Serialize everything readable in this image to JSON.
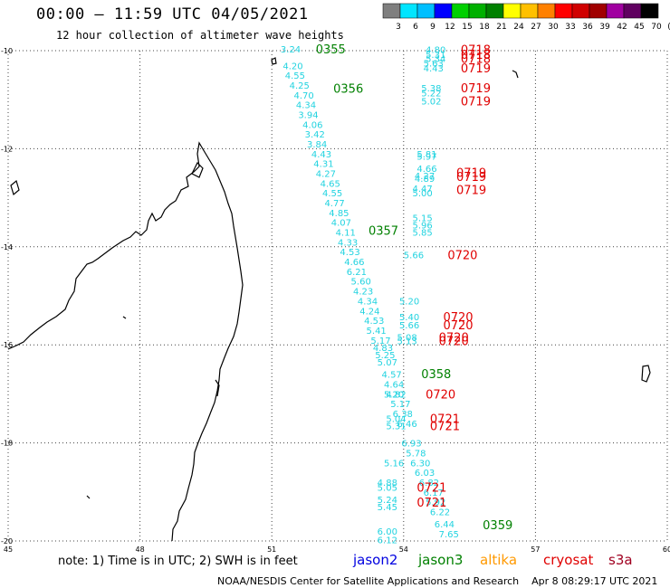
{
  "header": {
    "title": "00:00 – 11:59 UTC 04/05/2021",
    "subtitle": "12 hour collection of altimeter wave heights"
  },
  "colorbar": {
    "labels": [
      "3",
      "6",
      "9",
      "12",
      "15",
      "18",
      "21",
      "24",
      "27",
      "30",
      "33",
      "36",
      "39",
      "42",
      "45",
      "70",
      "(ft)"
    ],
    "colors": [
      "#7f7f7f",
      "#00e5ff",
      "#00bfff",
      "#0000ff",
      "#00d000",
      "#00b000",
      "#008000",
      "#ffff00",
      "#ffc000",
      "#ff8000",
      "#ff0000",
      "#d00000",
      "#a00000",
      "#a000a0",
      "#600060",
      "#000000"
    ]
  },
  "axes": {
    "lon_ticks": [
      "45",
      "48",
      "51",
      "54",
      "57",
      "60"
    ],
    "lat_ticks": [
      "-10",
      "-12",
      "-14",
      "-16",
      "-18",
      "-20"
    ],
    "lon_range": [
      45,
      60
    ],
    "lat_range": [
      -20,
      -10
    ]
  },
  "passes": [
    {
      "time": "0355",
      "satellite": "jason3",
      "lon": 52.0,
      "lat": -9.96
    },
    {
      "time": "0356",
      "satellite": "jason3",
      "lon": 52.4,
      "lat": -10.77
    },
    {
      "time": "0357",
      "satellite": "jason3",
      "lon": 53.2,
      "lat": -13.66
    },
    {
      "time": "0358",
      "satellite": "jason3",
      "lon": 54.4,
      "lat": -16.59
    },
    {
      "time": "0359",
      "satellite": "jason3",
      "lon": 55.8,
      "lat": -19.67
    },
    {
      "time": "0718",
      "satellite": "cryosat",
      "lon": 55.3,
      "lat": -9.97
    },
    {
      "time": "0718",
      "satellite": "cryosat",
      "lon": 55.3,
      "lat": -10.07
    },
    {
      "time": "0718",
      "satellite": "cryosat",
      "lon": 55.3,
      "lat": -10.16
    },
    {
      "time": "0719",
      "satellite": "cryosat",
      "lon": 55.3,
      "lat": -10.35
    },
    {
      "time": "0719",
      "satellite": "cryosat",
      "lon": 55.3,
      "lat": -10.76
    },
    {
      "time": "0719",
      "satellite": "cryosat",
      "lon": 55.3,
      "lat": -11.02
    },
    {
      "time": "0719",
      "satellite": "cryosat",
      "lon": 55.2,
      "lat": -12.48
    },
    {
      "time": "0719",
      "satellite": "cryosat",
      "lon": 55.2,
      "lat": -12.56
    },
    {
      "time": "0719",
      "satellite": "cryosat",
      "lon": 55.2,
      "lat": -12.83
    },
    {
      "time": "0720",
      "satellite": "cryosat",
      "lon": 55.0,
      "lat": -14.16
    },
    {
      "time": "0720",
      "satellite": "cryosat",
      "lon": 54.9,
      "lat": -15.42
    },
    {
      "time": "0720",
      "satellite": "cryosat",
      "lon": 54.9,
      "lat": -15.59
    },
    {
      "time": "0720",
      "satellite": "cryosat",
      "lon": 54.8,
      "lat": -15.84
    },
    {
      "time": "0720",
      "satellite": "cryosat",
      "lon": 54.8,
      "lat": -15.91
    },
    {
      "time": "0720",
      "satellite": "cryosat",
      "lon": 54.5,
      "lat": -17.0
    },
    {
      "time": "0721",
      "satellite": "cryosat",
      "lon": 54.6,
      "lat": -17.5
    },
    {
      "time": "0721",
      "satellite": "cryosat",
      "lon": 54.6,
      "lat": -17.65
    },
    {
      "time": "0721",
      "satellite": "cryosat",
      "lon": 54.3,
      "lat": -18.9
    },
    {
      "time": "0721",
      "satellite": "cryosat",
      "lon": 54.3,
      "lat": -19.21
    }
  ],
  "swh_track_jason3": [
    {
      "v": "3.24",
      "lon": 51.2,
      "lat": -9.96
    },
    {
      "v": "4.20",
      "lon": 51.25,
      "lat": -10.3
    },
    {
      "v": "4.55",
      "lon": 51.3,
      "lat": -10.5
    },
    {
      "v": "4.25",
      "lon": 51.4,
      "lat": -10.7
    },
    {
      "v": "4.70",
      "lon": 51.5,
      "lat": -10.9
    },
    {
      "v": "4.34",
      "lon": 51.55,
      "lat": -11.1
    },
    {
      "v": "3.94",
      "lon": 51.6,
      "lat": -11.3
    },
    {
      "v": "4.06",
      "lon": 51.7,
      "lat": -11.5
    },
    {
      "v": "3.42",
      "lon": 51.75,
      "lat": -11.7
    },
    {
      "v": "3.84",
      "lon": 51.8,
      "lat": -11.9
    },
    {
      "v": "4.43",
      "lon": 51.9,
      "lat": -12.1
    },
    {
      "v": "4.31",
      "lon": 51.95,
      "lat": -12.3
    },
    {
      "v": "4.27",
      "lon": 52.0,
      "lat": -12.5
    },
    {
      "v": "4.65",
      "lon": 52.1,
      "lat": -12.7
    },
    {
      "v": "4.55",
      "lon": 52.15,
      "lat": -12.9
    },
    {
      "v": "4.77",
      "lon": 52.2,
      "lat": -13.1
    },
    {
      "v": "4.85",
      "lon": 52.3,
      "lat": -13.3
    },
    {
      "v": "4.07",
      "lon": 52.35,
      "lat": -13.5
    },
    {
      "v": "4.11",
      "lon": 52.45,
      "lat": -13.7
    },
    {
      "v": "4.33",
      "lon": 52.5,
      "lat": -13.9
    },
    {
      "v": "4.53",
      "lon": 52.55,
      "lat": -14.1
    },
    {
      "v": "4.66",
      "lon": 52.65,
      "lat": -14.3
    },
    {
      "v": "6.21",
      "lon": 52.7,
      "lat": -14.5
    },
    {
      "v": "5.60",
      "lon": 52.8,
      "lat": -14.7
    },
    {
      "v": "4.23",
      "lon": 52.85,
      "lat": -14.9
    },
    {
      "v": "4.34",
      "lon": 52.95,
      "lat": -15.1
    },
    {
      "v": "4.24",
      "lon": 53.0,
      "lat": -15.3
    },
    {
      "v": "4.53",
      "lon": 53.1,
      "lat": -15.5
    },
    {
      "v": "5.41",
      "lon": 53.15,
      "lat": -15.7
    },
    {
      "v": "5.17",
      "lon": 53.25,
      "lat": -15.9
    },
    {
      "v": "4.83",
      "lon": 53.3,
      "lat": -16.05
    },
    {
      "v": "5.25",
      "lon": 53.35,
      "lat": -16.2
    },
    {
      "v": "5.07",
      "lon": 53.4,
      "lat": -16.35
    },
    {
      "v": "4.57",
      "lon": 53.5,
      "lat": -16.6
    },
    {
      "v": "4.64",
      "lon": 53.55,
      "lat": -16.8
    },
    {
      "v": "4.82",
      "lon": 53.6,
      "lat": -17.0
    },
    {
      "v": "5.17",
      "lon": 53.7,
      "lat": -17.2
    },
    {
      "v": "6.38",
      "lon": 53.75,
      "lat": -17.4
    },
    {
      "v": "6.46",
      "lon": 53.85,
      "lat": -17.6
    },
    {
      "v": "6.93",
      "lon": 53.95,
      "lat": -18.0
    },
    {
      "v": "5.78",
      "lon": 54.05,
      "lat": -18.2
    },
    {
      "v": "6.30",
      "lon": 54.15,
      "lat": -18.4
    },
    {
      "v": "6.03",
      "lon": 54.25,
      "lat": -18.6
    },
    {
      "v": "6.82",
      "lon": 54.35,
      "lat": -18.8
    },
    {
      "v": "6.17",
      "lon": 54.45,
      "lat": -19.0
    },
    {
      "v": "5.92",
      "lon": 54.5,
      "lat": -19.2
    },
    {
      "v": "6.22",
      "lon": 54.6,
      "lat": -19.4
    },
    {
      "v": "6.44",
      "lon": 54.7,
      "lat": -19.65
    },
    {
      "v": "7.65",
      "lon": 54.8,
      "lat": -19.85
    }
  ],
  "swh_track_cryosat": [
    {
      "v": "4.80",
      "lon": 54.5,
      "lat": -9.97
    },
    {
      "v": "5.31",
      "lon": 54.5,
      "lat": -10.07
    },
    {
      "v": "5.34",
      "lon": 54.5,
      "lat": -10.16
    },
    {
      "v": "5.63",
      "lon": 54.45,
      "lat": -10.25
    },
    {
      "v": "4.43",
      "lon": 54.45,
      "lat": -10.35
    },
    {
      "v": "5.38",
      "lon": 54.4,
      "lat": -10.76
    },
    {
      "v": "5.22",
      "lon": 54.4,
      "lat": -10.86
    },
    {
      "v": "5.02",
      "lon": 54.4,
      "lat": -11.02
    },
    {
      "v": "5.81",
      "lon": 54.3,
      "lat": -12.1
    },
    {
      "v": "5.97",
      "lon": 54.3,
      "lat": -12.15
    },
    {
      "v": "4.66",
      "lon": 54.3,
      "lat": -12.4
    },
    {
      "v": "4.27",
      "lon": 54.25,
      "lat": -12.55
    },
    {
      "v": "4.89",
      "lon": 54.25,
      "lat": -12.6
    },
    {
      "v": "4.47",
      "lon": 54.2,
      "lat": -12.8
    },
    {
      "v": "5.00",
      "lon": 54.2,
      "lat": -12.9
    },
    {
      "v": "5.15",
      "lon": 54.2,
      "lat": -13.4
    },
    {
      "v": "5.96",
      "lon": 54.2,
      "lat": -13.55
    },
    {
      "v": "5.85",
      "lon": 54.2,
      "lat": -13.7
    },
    {
      "v": "5.66",
      "lon": 54.0,
      "lat": -14.16
    },
    {
      "v": "5.20",
      "lon": 53.9,
      "lat": -15.1
    },
    {
      "v": "5.40",
      "lon": 53.9,
      "lat": -15.42
    },
    {
      "v": "5.66",
      "lon": 53.9,
      "lat": -15.59
    },
    {
      "v": "5.08",
      "lon": 53.85,
      "lat": -15.84
    },
    {
      "v": "5.13",
      "lon": 53.85,
      "lat": -15.91
    },
    {
      "v": "5.20",
      "lon": 53.55,
      "lat": -17.0
    },
    {
      "v": "5.04",
      "lon": 53.6,
      "lat": -17.5
    },
    {
      "v": "5.31",
      "lon": 53.6,
      "lat": -17.65
    },
    {
      "v": "5.16",
      "lon": 53.55,
      "lat": -18.4
    },
    {
      "v": "4.88",
      "lon": 53.4,
      "lat": -18.8
    },
    {
      "v": "5.05",
      "lon": 53.4,
      "lat": -18.9
    },
    {
      "v": "5.24",
      "lon": 53.4,
      "lat": -19.15
    },
    {
      "v": "5.45",
      "lon": 53.4,
      "lat": -19.3
    },
    {
      "v": "6.00",
      "lon": 53.4,
      "lat": -19.8
    },
    {
      "v": "6.12",
      "lon": 53.4,
      "lat": -19.97
    }
  ],
  "legend": {
    "note": "note: 1) Time is in UTC; 2) SWH is in feet",
    "satellites": [
      {
        "name": "jason2",
        "color": "#0000e0"
      },
      {
        "name": "jason3",
        "color": "#008000"
      },
      {
        "name": "altika",
        "color": "#ff9900"
      },
      {
        "name": "cryosat",
        "color": "#e00000"
      },
      {
        "name": "s3a",
        "color": "#a00020"
      }
    ]
  },
  "footer": {
    "credit": "NOAA/NESDIS Center for Satellite Applications and Research",
    "timestamp": "Apr  8 08:29:17 UTC 2021"
  },
  "colors": {
    "swh": "#22d3e0",
    "jason3": "#008000",
    "cryosat": "#e00000"
  }
}
